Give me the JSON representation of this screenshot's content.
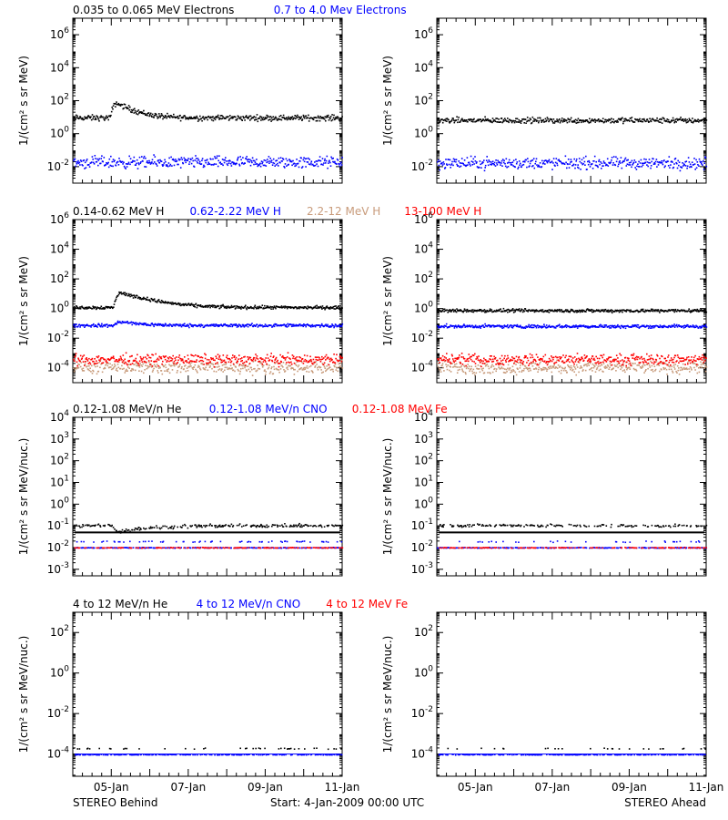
{
  "footer": {
    "left": "STEREO Behind",
    "center": "Start:  4-Jan-2009 00:00 UTC",
    "right": "STEREO Ahead"
  },
  "time_axis": {
    "start": "2009-01-04",
    "end": "2009-01-11",
    "ticks": [
      "05-Jan",
      "07-Jan",
      "09-Jan",
      "11-Jan"
    ]
  },
  "colors": {
    "black": "#000000",
    "blue": "#0000ff",
    "tan": "#c89b7b",
    "red": "#ff0000"
  },
  "chart_data": [
    {
      "type": "scatter",
      "row": 1,
      "legend": [
        {
          "text": "0.035 to 0.065 MeV Electrons",
          "color": "#000000"
        },
        {
          "text": "0.7 to 4.0 Mev Electrons",
          "color": "#0000ff"
        }
      ],
      "ylabel": "1/(cm² s sr MeV)",
      "ylog": true,
      "ylim": [
        0.001,
        10000000
      ],
      "yticks": [
        {
          "exp": "-2",
          "value": 0.01
        },
        {
          "exp": "0",
          "value": 1
        },
        {
          "exp": "2",
          "value": 100
        },
        {
          "exp": "4",
          "value": 10000
        },
        {
          "exp": "6",
          "value": 1000000
        }
      ],
      "behind": {
        "series": [
          {
            "color": "#000000",
            "level": 10,
            "spread": 0.12,
            "burst": {
              "t": 0.96,
              "peak": 8,
              "decay": 0.35
            }
          },
          {
            "color": "#0000ff",
            "level": 0.02,
            "spread": 0.25
          }
        ]
      },
      "ahead": {
        "series": [
          {
            "color": "#000000",
            "level": 7,
            "spread": 0.12
          },
          {
            "color": "#0000ff",
            "level": 0.018,
            "spread": 0.25
          }
        ]
      }
    },
    {
      "type": "scatter",
      "row": 2,
      "legend": [
        {
          "text": "0.14-0.62 MeV H",
          "color": "#000000"
        },
        {
          "text": "0.62-2.22 MeV H",
          "color": "#0000ff"
        },
        {
          "text": "2.2-12 MeV H",
          "color": "#c89b7b"
        },
        {
          "text": "13-100 MeV H",
          "color": "#ff0000"
        }
      ],
      "ylabel": "1/(cm² s sr MeV)",
      "ylog": true,
      "ylim": [
        1e-05,
        1000000
      ],
      "yticks": [
        {
          "exp": "-4",
          "value": 0.0001
        },
        {
          "exp": "-2",
          "value": 0.01
        },
        {
          "exp": "0",
          "value": 1
        },
        {
          "exp": "2",
          "value": 100
        },
        {
          "exp": "4",
          "value": 10000
        },
        {
          "exp": "6",
          "value": 1000000
        }
      ],
      "behind": {
        "series": [
          {
            "color": "#000000",
            "level": 1.3,
            "spread": 0.08,
            "burst": {
              "t": 1.05,
              "peak": 10,
              "decay": 0.6
            }
          },
          {
            "color": "#0000ff",
            "level": 0.08,
            "spread": 0.08,
            "burst": {
              "t": 1.05,
              "peak": 1.8,
              "decay": 0.5
            }
          },
          {
            "color": "#c89b7b",
            "level": 0.00012,
            "spread": 0.3
          },
          {
            "color": "#ff0000",
            "level": 0.0004,
            "spread": 0.25
          }
        ]
      },
      "ahead": {
        "series": [
          {
            "color": "#000000",
            "level": 0.8,
            "spread": 0.08
          },
          {
            "color": "#0000ff",
            "level": 0.07,
            "spread": 0.08
          },
          {
            "color": "#c89b7b",
            "level": 0.00012,
            "spread": 0.3
          },
          {
            "color": "#ff0000",
            "level": 0.0004,
            "spread": 0.25
          }
        ]
      }
    },
    {
      "type": "scatter",
      "row": 3,
      "legend": [
        {
          "text": "0.12-1.08 MeV/n He",
          "color": "#000000"
        },
        {
          "text": "0.12-1.08 MeV/n CNO",
          "color": "#0000ff"
        },
        {
          "text": "0.12-1.08 MeV Fe",
          "color": "#ff0000"
        }
      ],
      "ylabel": "1/(cm² s sr MeV/nuc.)",
      "ylog": true,
      "ylim": [
        0.0005,
        10000
      ],
      "yticks": [
        {
          "base": "10",
          "exp": "-3",
          "value": 0.001
        },
        {
          "base": "10",
          "exp": "-2",
          "value": 0.01
        },
        {
          "base": "10",
          "exp": "-1",
          "value": 0.1
        },
        {
          "base": "10",
          "exp": "0",
          "value": 1
        },
        {
          "base": "10",
          "exp": "1",
          "value": 10
        },
        {
          "base": "10",
          "exp": "2",
          "value": 100
        },
        {
          "base": "10",
          "exp": "3",
          "value": 1000
        },
        {
          "base": "10",
          "exp": "4",
          "value": 10000
        }
      ],
      "behind": {
        "lines": [
          {
            "color": "#000000",
            "level": 0.05
          }
        ],
        "series": [
          {
            "color": "#000000",
            "level": 0.11,
            "spread": 0.05,
            "sparse": 0.55,
            "burst": {
              "t": 1.0,
              "peak": 0.5,
              "decay": 0.9
            }
          },
          {
            "color": "#0000ff",
            "level": 0.02,
            "spread": 0.02,
            "sparse": 0.12
          },
          {
            "color": "#0000ff",
            "level": 0.0105,
            "spread": 0.01,
            "sparse": 0.6
          },
          {
            "color": "#ff0000",
            "level": 0.0105,
            "spread": 0.01,
            "sparse": 0.35
          }
        ]
      },
      "ahead": {
        "lines": [
          {
            "color": "#000000",
            "level": 0.05
          }
        ],
        "series": [
          {
            "color": "#000000",
            "level": 0.11,
            "spread": 0.05,
            "sparse": 0.4
          },
          {
            "color": "#0000ff",
            "level": 0.02,
            "spread": 0.02,
            "sparse": 0.12
          },
          {
            "color": "#0000ff",
            "level": 0.0105,
            "spread": 0.01,
            "sparse": 0.6
          },
          {
            "color": "#ff0000",
            "level": 0.0105,
            "spread": 0.01,
            "sparse": 0.35
          }
        ]
      }
    },
    {
      "type": "scatter",
      "row": 4,
      "legend": [
        {
          "text": "4 to 12 MeV/n He",
          "color": "#000000"
        },
        {
          "text": "4 to 12 MeV/n CNO",
          "color": "#0000ff"
        },
        {
          "text": "4 to 12 MeV Fe",
          "color": "#ff0000"
        }
      ],
      "ylabel": "1/(cm² s sr MeV/nuc.)",
      "ylog": true,
      "ylim": [
        8e-06,
        1000
      ],
      "yticks": [
        {
          "exp": "-4",
          "value": 0.0001
        },
        {
          "exp": "-2",
          "value": 0.01
        },
        {
          "exp": "0",
          "value": 1
        },
        {
          "exp": "2",
          "value": 100
        }
      ],
      "behind": {
        "lines": [
          {
            "color": "#0000ff",
            "level": 0.0001
          }
        ],
        "series": [
          {
            "color": "#000000",
            "level": 0.0002,
            "spread": 0.02,
            "sparse": 0.08
          },
          {
            "color": "#0000ff",
            "level": 0.0001,
            "spread": 0.01,
            "sparse": 0.5
          }
        ]
      },
      "ahead": {
        "lines": [
          {
            "color": "#0000ff",
            "level": 0.0001
          }
        ],
        "series": [
          {
            "color": "#000000",
            "level": 0.0002,
            "spread": 0.02,
            "sparse": 0.08
          },
          {
            "color": "#0000ff",
            "level": 0.0001,
            "spread": 0.01,
            "sparse": 0.5
          }
        ]
      }
    }
  ]
}
